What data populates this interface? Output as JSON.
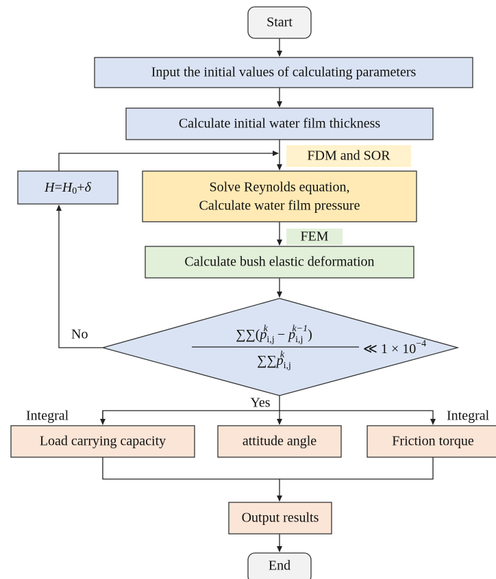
{
  "nodes": {
    "start": "Start",
    "input": "Input the initial values of calculating parameters",
    "initial": "Calculate initial water film thickness",
    "solve": [
      "Solve Reynolds equation,",
      "Calculate water film pressure"
    ],
    "deform": "Calculate bush elastic deformation",
    "load": "Load carrying capacity",
    "attitude": "attitude angle",
    "friction": "Friction torque",
    "output": "Output results",
    "end": "End",
    "update": [
      "H",
      "=",
      "H",
      "0",
      "+",
      "δ"
    ]
  },
  "annotations": {
    "fdm": "FDM and SOR",
    "fem": "FEM"
  },
  "edges": {
    "no": "No",
    "yes": "Yes",
    "integral_left": "Integral",
    "integral_right": "Integral"
  },
  "condition": {
    "numerator": [
      "∑∑(",
      "p",
      "i,j",
      "k",
      " − ",
      "p",
      "i,j",
      "k−1",
      ")"
    ],
    "denominator": [
      "∑∑",
      "p",
      "i,j",
      "k"
    ],
    "rhs": [
      "≪ 1 × 10",
      "−4"
    ]
  }
}
